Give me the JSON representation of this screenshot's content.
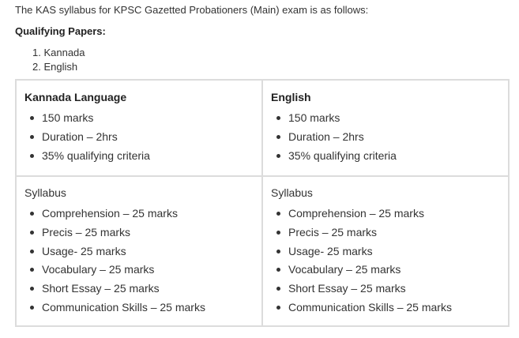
{
  "intro": "The KAS syllabus for KPSC Gazetted Probationers (Main) exam is as follows:",
  "qualifying_title": "Qualifying Papers:",
  "qualifying_papers": [
    "1. Kannada",
    "2. English"
  ],
  "table": {
    "top": [
      {
        "heading": "Kannada Language",
        "items": [
          "150 marks",
          "Duration – 2hrs",
          "35% qualifying criteria"
        ]
      },
      {
        "heading": "English",
        "items": [
          "150 marks",
          "Duration – 2hrs",
          "35% qualifying criteria"
        ]
      }
    ],
    "bottom": [
      {
        "heading": "Syllabus",
        "items": [
          "Comprehension – 25 marks",
          "Precis – 25 marks",
          "Usage- 25 marks",
          "Vocabulary – 25 marks",
          "Short Essay – 25 marks",
          "Communication Skills – 25 marks"
        ]
      },
      {
        "heading": "Syllabus",
        "items": [
          "Comprehension – 25 marks",
          "Precis – 25 marks",
          "Usage- 25 marks",
          "Vocabulary – 25 marks",
          "Short Essay – 25 marks",
          "Communication Skills – 25 marks"
        ]
      }
    ]
  }
}
